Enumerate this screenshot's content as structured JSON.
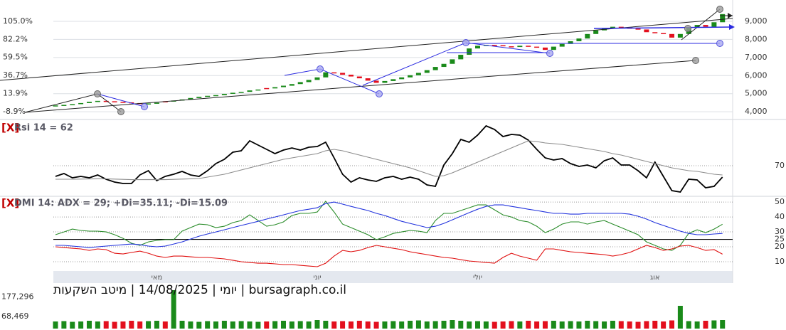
{
  "chart_data": [
    {
      "type": "candlestick",
      "categories": [
        null,
        null,
        null,
        null,
        null,
        null,
        null,
        null,
        null,
        null,
        null,
        null,
        "מאי",
        null,
        null,
        null,
        null,
        null,
        null,
        null,
        null,
        null,
        null,
        null,
        null,
        null,
        null,
        null,
        null,
        null,
        null,
        "יוני",
        null,
        null,
        null,
        null,
        null,
        null,
        null,
        null,
        null,
        null,
        null,
        null,
        null,
        null,
        null,
        null,
        null,
        null,
        "יולי",
        null,
        null,
        null,
        null,
        null,
        null,
        null,
        null,
        null,
        null,
        null,
        null,
        null,
        null,
        null,
        null,
        null,
        null,
        null,
        null,
        "אוג",
        null,
        null,
        null,
        null,
        null,
        null,
        null,
        null
      ],
      "open": [
        4330,
        4350,
        4380,
        4420,
        4480,
        4550,
        4600,
        4580,
        4550,
        4520,
        4480,
        4450,
        4460,
        4580,
        4560,
        4620,
        4680,
        4760,
        4830,
        4880,
        4920,
        4990,
        5050,
        5100,
        5180,
        5310,
        5290,
        5360,
        5440,
        5530,
        5640,
        5760,
        5900,
        6180,
        6150,
        6050,
        5950,
        5850,
        5720,
        5600,
        5700,
        5800,
        5900,
        6020,
        6150,
        6300,
        6480,
        6650,
        6900,
        7150,
        7500,
        7650,
        7700,
        7680,
        7620,
        7580,
        7650,
        7600,
        7550,
        7420,
        7600,
        7750,
        7900,
        8050,
        8300,
        8500,
        8600,
        8700,
        8650,
        8600,
        8550,
        8400,
        8350,
        8300,
        8100,
        8300,
        8650,
        8800,
        8700,
        8950
      ],
      "close": [
        4350,
        4380,
        4420,
        4480,
        4550,
        4600,
        4580,
        4550,
        4520,
        4480,
        4450,
        4460,
        4500,
        4560,
        4620,
        4680,
        4760,
        4830,
        4880,
        4920,
        4990,
        5050,
        5100,
        5180,
        5230,
        5290,
        5360,
        5440,
        5530,
        5640,
        5760,
        5900,
        6180,
        6150,
        6050,
        5950,
        5850,
        5720,
        5600,
        5700,
        5800,
        5900,
        6020,
        6150,
        6300,
        6480,
        6650,
        6900,
        7150,
        7500,
        7650,
        7700,
        7680,
        7620,
        7580,
        7650,
        7600,
        7550,
        7420,
        7600,
        7750,
        7900,
        8050,
        8300,
        8500,
        8600,
        8700,
        8650,
        8600,
        8550,
        8400,
        8350,
        8300,
        8100,
        8300,
        8650,
        8800,
        8700,
        8950,
        9400
      ],
      "up_color": "#1a8a1a",
      "down_color": "#e3101e",
      "ylim": [
        3690,
        10180
      ],
      "yticks": [
        {
          "value": 4000,
          "label": "4,000"
        },
        {
          "value": 5000,
          "label": "5,000"
        },
        {
          "value": 6000,
          "label": "6,000"
        },
        {
          "value": 7000,
          "label": "7,000"
        },
        {
          "value": 8000,
          "label": "8,000"
        },
        {
          "value": 9000,
          "label": "9,000"
        }
      ],
      "y2lim": [
        -16.0,
        131.8
      ],
      "y2ticks": [
        {
          "value": -8.9,
          "label": "-8.9%"
        },
        {
          "value": 13.9,
          "label": "13.9%"
        },
        {
          "value": 36.7,
          "label": "36.7%"
        },
        {
          "value": 59.5,
          "label": "59.5%"
        },
        {
          "value": 82.2,
          "label": "82.2%"
        },
        {
          "value": 105.0,
          "label": "105.0%"
        }
      ],
      "grid": true
    },
    {
      "type": "line",
      "close_label": "[X]",
      "title": "Rsi 14 = 62",
      "series": [
        {
          "color": "#000000",
          "values": [
            62.5,
            64.5,
            61.5,
            62.5,
            61.5,
            63.5,
            60.5,
            58.5,
            57.5,
            57.5,
            63.5,
            66.5,
            59.5,
            62.5,
            64,
            66,
            63.5,
            62.5,
            66.5,
            71.5,
            74.5,
            79.5,
            80.5,
            87.5,
            84.5,
            81.5,
            78.5,
            81,
            82.5,
            81,
            83,
            83.5,
            86.5,
            75.5,
            64,
            58.5,
            61.5,
            60,
            59,
            61.5,
            62.5,
            60.5,
            62,
            60.5,
            56.5,
            55.5,
            70.5,
            78.5,
            88.5,
            86.5,
            91.5,
            98,
            95.5,
            90.5,
            92,
            91.5,
            88,
            81.5,
            75.5,
            74,
            75,
            71.5,
            69.5,
            70.5,
            68.5,
            73.5,
            75.5,
            70.5,
            70.5,
            66.5,
            61.5,
            72.5,
            62.5,
            52.5,
            51.5,
            60.5,
            60,
            54.5,
            55.5,
            62
          ]
        },
        {
          "color": "#8c8c8c",
          "values": [
            60.5,
            60.5,
            60.5,
            60.6,
            60.7,
            60.8,
            60.8,
            60.6,
            60.4,
            60.2,
            60.2,
            60.3,
            60.2,
            60.2,
            60.4,
            60.6,
            60.8,
            61,
            62,
            63,
            64,
            65.5,
            67,
            68.5,
            70,
            71.5,
            73,
            74.5,
            75.5,
            76.5,
            77.5,
            78.5,
            80.5,
            81.5,
            80.5,
            79,
            77.5,
            76,
            74.5,
            73,
            71.5,
            70,
            68.5,
            66.5,
            64.5,
            62.5,
            63,
            65,
            67.5,
            70,
            72.5,
            75,
            77.5,
            80,
            82.5,
            85,
            87.5,
            87,
            86,
            85.5,
            85,
            84,
            83,
            82,
            81,
            80,
            78.5,
            77.5,
            76,
            74.5,
            73,
            71.5,
            70,
            68.5,
            67.5,
            66.5,
            66,
            65,
            64,
            63.5
          ]
        }
      ],
      "ylim": [
        49,
        100.5
      ],
      "yticks": [
        70
      ]
    },
    {
      "type": "line",
      "close_label": "[X]",
      "title": "DMI 14: ADX = 29; +Di=35.11; -Di=15.09",
      "series": [
        {
          "color": "#2a8c2a",
          "values": [
            28.1,
            30,
            31.9,
            31,
            30.5,
            30.5,
            30,
            28.1,
            25.7,
            22.4,
            21,
            23.3,
            24.3,
            24.8,
            24.8,
            30.5,
            32.9,
            35.2,
            34.8,
            32.9,
            33.8,
            36.2,
            37.6,
            41.4,
            37.6,
            33.8,
            34.8,
            36.7,
            41,
            42.4,
            42.4,
            43.3,
            50.5,
            43.3,
            35.2,
            32.9,
            30.5,
            28.1,
            24.8,
            26.7,
            29,
            30,
            31,
            30.5,
            29.5,
            37.6,
            42.4,
            42.4,
            44.3,
            46.2,
            48.1,
            48.1,
            44.8,
            41.4,
            40,
            37.6,
            36.7,
            33.8,
            29.5,
            31.9,
            35.2,
            36.7,
            36.7,
            35.2,
            36.7,
            37.6,
            35.2,
            32.9,
            30.5,
            28.1,
            23.3,
            21,
            18.6,
            17.6,
            21,
            29,
            31.4,
            29.5,
            31.9,
            35.11
          ]
        },
        {
          "color": "#2233dd",
          "values": [
            21,
            21,
            20.5,
            20,
            19.5,
            20,
            20.5,
            21,
            21.4,
            21.9,
            21.4,
            20.5,
            20,
            20.5,
            21.9,
            23.3,
            25.2,
            27.1,
            28.6,
            30,
            31.4,
            32.9,
            34.3,
            35.7,
            37.1,
            38.6,
            40,
            41.4,
            42.9,
            44.3,
            45.2,
            46.2,
            49,
            50,
            48.6,
            47.1,
            45.7,
            44.3,
            42.4,
            41,
            39,
            37.1,
            35.7,
            34.3,
            32.9,
            33.8,
            35.7,
            38.1,
            40.5,
            42.9,
            45.2,
            47.1,
            48.1,
            48.1,
            47.1,
            46.2,
            45.2,
            44.3,
            43.3,
            42.4,
            42.4,
            41.9,
            41.9,
            42.4,
            42.4,
            42.4,
            42.4,
            42.4,
            41.9,
            40.5,
            38.6,
            36.2,
            34.3,
            32.4,
            30.5,
            29,
            28.1,
            28.1,
            28.6,
            29
          ]
        },
        {
          "color": "#e01010",
          "values": [
            20,
            19.5,
            19,
            18.6,
            17.6,
            18.6,
            18.1,
            15.7,
            15.2,
            16.2,
            17.1,
            15.7,
            13.8,
            12.9,
            13.8,
            13.8,
            13.3,
            12.9,
            12.9,
            12.4,
            11.9,
            11,
            10,
            9.5,
            9,
            9,
            8.6,
            8.1,
            8.1,
            7.6,
            7.1,
            6.7,
            9,
            13.8,
            17.6,
            16.7,
            17.6,
            19.5,
            21,
            20,
            19,
            18.1,
            16.7,
            15.7,
            14.8,
            13.8,
            12.9,
            12.4,
            11.4,
            10.5,
            10,
            9.5,
            9,
            12.9,
            15.7,
            13.8,
            12.4,
            11,
            18.6,
            18.6,
            17.6,
            16.7,
            16.2,
            15.7,
            15.2,
            14.8,
            13.8,
            14.8,
            16.2,
            18.6,
            21,
            19.5,
            17.6,
            18.6,
            20.5,
            21,
            19.5,
            17.6,
            18.1,
            15.09
          ]
        }
      ],
      "ylim": [
        4.3,
        52.9
      ],
      "yticks": [
        10,
        20,
        25,
        30,
        40,
        50
      ],
      "reference_line": 25
    },
    {
      "type": "bar",
      "title": "יומי | 14/08/2025 | מיטב השקעות | bursagraph.co.il",
      "values": [
        40000,
        42000,
        38000,
        40000,
        44000,
        40000,
        42000,
        38000,
        40000,
        44000,
        40000,
        42000,
        44000,
        40000,
        216000,
        44000,
        40000,
        38000,
        42000,
        40000,
        44000,
        40000,
        42000,
        40000,
        38000,
        40000,
        42000,
        44000,
        40000,
        42000,
        40000,
        48000,
        44000,
        40000,
        42000,
        40000,
        44000,
        40000,
        38000,
        40000,
        42000,
        40000,
        44000,
        46000,
        40000,
        42000,
        44000,
        48000,
        44000,
        40000,
        42000,
        40000,
        38000,
        40000,
        42000,
        40000,
        44000,
        40000,
        42000,
        44000,
        40000,
        42000,
        40000,
        44000,
        42000,
        40000,
        44000,
        42000,
        40000,
        38000,
        42000,
        44000,
        40000,
        46000,
        128000,
        42000,
        40000,
        44000,
        46000,
        48000
      ],
      "ylim": [
        0,
        248000
      ],
      "yticks": [
        {
          "value": 68469,
          "label": "68,469"
        },
        {
          "value": 177296,
          "label": "177,296"
        }
      ]
    }
  ]
}
